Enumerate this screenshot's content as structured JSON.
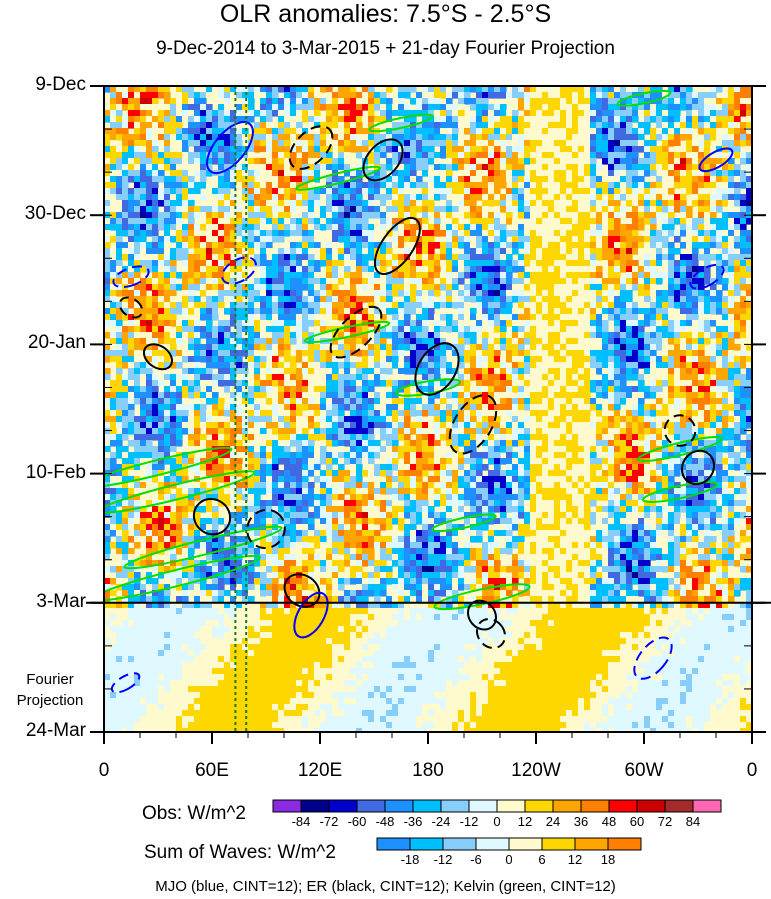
{
  "chart_data": {
    "type": "heatmap",
    "title": "OLR anomalies: 7.5°S - 2.5°S",
    "subtitle": "9-Dec-2014 to 3-Mar-2015 + 21-day Fourier Projection",
    "x_ticks": [
      "0",
      "60E",
      "120E",
      "180",
      "120W",
      "60W",
      "0"
    ],
    "x_tick_longitudes": [
      0,
      60,
      120,
      180,
      240,
      300,
      360
    ],
    "xlim": [
      0,
      360
    ],
    "y_ticks": [
      "9-Dec",
      "30-Dec",
      "20-Jan",
      "10-Feb",
      "3-Mar",
      "24-Mar"
    ],
    "y_tick_days": [
      0,
      21,
      42,
      63,
      84,
      105
    ],
    "ylim": [
      0,
      105
    ],
    "observation_end_day": 84,
    "projection_label_line1": "Fourier",
    "projection_label_line2": "Projection",
    "reference_longitudes": [
      73,
      79
    ],
    "obs_colorbar": {
      "title": "Obs: W/m^2",
      "levels": [
        "-84",
        "-72",
        "-60",
        "-48",
        "-36",
        "-24",
        "-12",
        "0",
        "12",
        "24",
        "36",
        "48",
        "60",
        "72",
        "84"
      ],
      "colors": [
        "#8a2be2",
        "#00008b",
        "#0000cd",
        "#4169e1",
        "#1e90ff",
        "#00bfff",
        "#87cefa",
        "#e0f8ff",
        "#fffacd",
        "#ffd700",
        "#ffa500",
        "#ff7f00",
        "#ff0000",
        "#cc0000",
        "#a52a2a",
        "#ff69b4"
      ]
    },
    "waves_colorbar": {
      "title": "Sum of Waves: W/m^2",
      "levels": [
        "-18",
        "-12",
        "-6",
        "0",
        "6",
        "12",
        "18"
      ],
      "colors": [
        "#1e90ff",
        "#00bfff",
        "#87cefa",
        "#e0f8ff",
        "#fffacd",
        "#ffd700",
        "#ffa500",
        "#ff7f00"
      ]
    },
    "contour_legend": "MJO (blue, CINT=12); ER (black, CINT=12); Kelvin (green, CINT=12)",
    "contour_colors": {
      "MJO": "#0000ff",
      "ER": "#000000",
      "Kelvin": "#00e000"
    },
    "er_contours": [
      {
        "lon": 163,
        "day": 26,
        "len": 30,
        "wid": 2.5,
        "ang": -55,
        "dash": false
      },
      {
        "lon": 185,
        "day": 46,
        "len": 26,
        "wid": 3,
        "ang": -58,
        "dash": false
      },
      {
        "lon": 205,
        "day": 55,
        "len": 30,
        "wid": 3,
        "ang": -58,
        "dash": true
      },
      {
        "lon": 140,
        "day": 40,
        "len": 30,
        "wid": 2.5,
        "ang": -45,
        "dash": true
      },
      {
        "lon": 115,
        "day": 10,
        "len": 24,
        "wid": 2.5,
        "ang": -45,
        "dash": true
      },
      {
        "lon": 155,
        "day": 12,
        "len": 22,
        "wid": 2.5,
        "ang": -48,
        "dash": false
      },
      {
        "lon": 30,
        "day": 44,
        "len": 10,
        "wid": 2.5,
        "ang": -55,
        "dash": false
      },
      {
        "lon": 60,
        "day": 70,
        "len": 16,
        "wid": 3,
        "ang": -55,
        "dash": false
      },
      {
        "lon": 90,
        "day": 72,
        "len": 18,
        "wid": 3,
        "ang": -55,
        "dash": true
      },
      {
        "lon": 110,
        "day": 82,
        "len": 14,
        "wid": 3,
        "ang": -55,
        "dash": false
      },
      {
        "lon": 210,
        "day": 86,
        "len": 12,
        "wid": 2.5,
        "ang": -40,
        "dash": false
      },
      {
        "lon": 215,
        "day": 89,
        "len": 12,
        "wid": 2.5,
        "ang": -40,
        "dash": true
      },
      {
        "lon": 330,
        "day": 62,
        "len": 16,
        "wid": 2.5,
        "ang": -55,
        "dash": false
      },
      {
        "lon": 320,
        "day": 56,
        "len": 14,
        "wid": 2.5,
        "ang": -55,
        "dash": true
      },
      {
        "lon": 15,
        "day": 36,
        "len": 8,
        "wid": 2,
        "ang": -55,
        "dash": true
      }
    ],
    "mjo_contours": [
      {
        "lon": 70,
        "day": 10,
        "len": 14,
        "wid": 5,
        "ang": 40,
        "dash": false
      },
      {
        "lon": 340,
        "day": 12,
        "len": 7,
        "wid": 3,
        "ang": 60,
        "dash": false
      },
      {
        "lon": 335,
        "day": 31,
        "len": 8,
        "wid": 3,
        "ang": 60,
        "dash": true
      },
      {
        "lon": 15,
        "day": 31,
        "len": 8,
        "wid": 3,
        "ang": 70,
        "dash": true
      },
      {
        "lon": 75,
        "day": 30,
        "len": 10,
        "wid": 3,
        "ang": 60,
        "dash": true
      },
      {
        "lon": 115,
        "day": 86,
        "len": 12,
        "wid": 4,
        "ang": 30,
        "dash": false
      },
      {
        "lon": 305,
        "day": 93,
        "len": 12,
        "wid": 4,
        "ang": 40,
        "dash": true
      },
      {
        "lon": 12,
        "day": 97,
        "len": 6,
        "wid": 2.5,
        "ang": 60,
        "dash": true
      }
    ],
    "kelvin_contours": [
      {
        "lon": 30,
        "day": 62,
        "len": 70,
        "wid": 1.2,
        "ang": -14,
        "dash": false
      },
      {
        "lon": 40,
        "day": 66,
        "len": 75,
        "wid": 1.2,
        "ang": -14,
        "dash": false
      },
      {
        "lon": 55,
        "day": 75,
        "len": 75,
        "wid": 1.2,
        "ang": -14,
        "dash": false
      },
      {
        "lon": 40,
        "day": 80,
        "len": 80,
        "wid": 1.3,
        "ang": -14,
        "dash": false
      },
      {
        "lon": 210,
        "day": 83,
        "len": 45,
        "wid": 1.2,
        "ang": -12,
        "dash": false
      },
      {
        "lon": 180,
        "day": 49,
        "len": 30,
        "wid": 1.0,
        "ang": -10,
        "dash": false
      },
      {
        "lon": 320,
        "day": 59,
        "len": 40,
        "wid": 1.0,
        "ang": -14,
        "dash": false
      },
      {
        "lon": 320,
        "day": 66,
        "len": 35,
        "wid": 1.0,
        "ang": -12,
        "dash": false
      },
      {
        "lon": 130,
        "day": 15,
        "len": 40,
        "wid": 0.8,
        "ang": -14,
        "dash": false
      },
      {
        "lon": 135,
        "day": 40,
        "len": 40,
        "wid": 0.8,
        "ang": -12,
        "dash": false
      },
      {
        "lon": 165,
        "day": 6,
        "len": 30,
        "wid": 0.8,
        "ang": -12,
        "dash": false
      },
      {
        "lon": 300,
        "day": 2,
        "len": 25,
        "wid": 0.8,
        "ang": -12,
        "dash": false
      },
      {
        "lon": 200,
        "day": 71,
        "len": 30,
        "wid": 0.8,
        "ang": -12,
        "dash": false
      }
    ]
  }
}
